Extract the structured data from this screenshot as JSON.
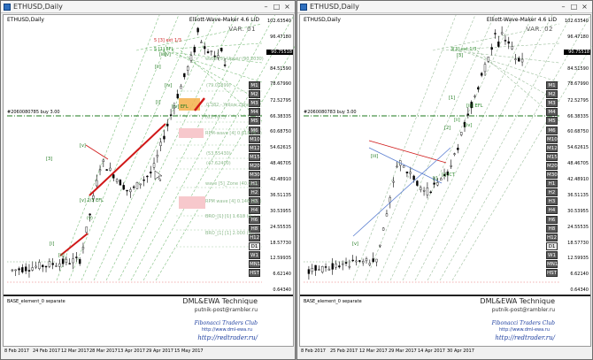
{
  "windows": [
    {
      "id": "w1",
      "title": "ETHUSD,Daily",
      "symbol": "ETHUSD,Daily",
      "indicator": "Elliott-Wave-Maker 4.6 LID",
      "variant": "VAR. 01",
      "prices": [
        "102.63540",
        "96.47180",
        "90.75518",
        "84.51590",
        "78.67990",
        "72.52795",
        "66.38335",
        "60.68750",
        "54.62615",
        "48.46705",
        "42.48910",
        "36.51135",
        "30.53955",
        "24.55535",
        "18.57730",
        "12.59935",
        "6.62140",
        "0.64340"
      ],
      "current_price": "90.75518",
      "timeframes": [
        "M1",
        "M2",
        "M3",
        "M4",
        "M5",
        "M6",
        "M10",
        "M12",
        "M15",
        "M20",
        "M30",
        "H1",
        "H2",
        "H3",
        "H4",
        "H6",
        "H8",
        "H12",
        "D1",
        "W1",
        "MN1",
        "HST"
      ],
      "active_tf": "D1",
      "level_labels": [
        "5 [3] ext 1/3",
        "5 [1] EFL",
        "wave [5]_Upper (90.2030)",
        "(79.01899)",
        "0.382 - Yellow Zone",
        "(63.76...)",
        "RPM-wave [4] 0.618 (5...)",
        "(53.55430)",
        "(47.62400)",
        "wave [5]_Zone (40.1...)",
        "RPM wave [4] 0.146 (3...)",
        "BRO_[1] [1] 1.618 (3...",
        "BRO_[1] [1] 2.000 (1..."
      ],
      "wave_labels": [
        "[iv]",
        "[iii]",
        "[ii]",
        "[i]",
        "[iv] EFL",
        "[v]",
        "(v)",
        "[v] 2/3 EFL",
        "[3]",
        "[i]",
        "[v]",
        "[ii]"
      ],
      "entry_text": "#2060080785 buy 3.00",
      "base_text": "BASE_element_0 separate",
      "dml": "DML&EWA Technique",
      "mail": "putnik-post@rambler.ru",
      "club": "Fibonacci Traders Club",
      "url1": "http://www.dml-ewa.ru",
      "url2": "http://redtrader.ru/",
      "dates": [
        "8 Feb 2017",
        "24 Feb 2017",
        "12 Mar 2017",
        "28 Mar 2017",
        "13 Apr 2017",
        "29 Apr 2017",
        "15 May 2017"
      ]
    },
    {
      "id": "w2",
      "title": "ETHUSD,Daily",
      "symbol": "ETHUSD,Daily",
      "indicator": "Elliott-Wave-Maker 4.6 LID",
      "variant": "VAR. 02",
      "prices": [
        "102.63540",
        "96.47180",
        "90.75518",
        "84.51590",
        "78.67990",
        "72.52795",
        "66.38335",
        "60.68750",
        "54.62615",
        "48.46705",
        "42.48910",
        "36.51135",
        "30.53955",
        "24.55535",
        "18.57730",
        "12.59935",
        "6.62140",
        "0.64340"
      ],
      "current_price": "90.75518",
      "timeframes": [
        "M1",
        "M2",
        "M3",
        "M4",
        "M5",
        "M6",
        "M10",
        "M12",
        "M15",
        "M20",
        "M30",
        "H1",
        "H2",
        "H3",
        "H4",
        "H6",
        "H8",
        "H12",
        "D1",
        "W1",
        "MN1",
        "HST"
      ],
      "active_tf": "D1",
      "level_labels": [
        "3[3] ext 1/3",
        "[iii] EFL",
        "[ii]",
        "[iv]",
        "[i] ICT"
      ],
      "wave_labels": [
        "[3]",
        "[1]",
        "[2]",
        "[v]",
        "[iii]",
        "[i]"
      ],
      "entry_text": "#2060080783 buy 3.00",
      "base_text": "BASE_element_0 separate",
      "dml": "DML&EWA Technique",
      "mail": "putnik-post@rambler.ru",
      "club": "Fibonacci Traders Club",
      "url1": "http://www.dml-ewa.ru",
      "url2": "http://redtrader.ru/",
      "dates": [
        "8 Feb 2017",
        "25 Feb 2017",
        "12 Mar 2017",
        "29 Mar 2017",
        "14 Apr 2017",
        "30 Apr 2017"
      ]
    }
  ],
  "colors": {
    "bull": "#2a8a2a",
    "bear": "#000000",
    "trend_red": "#d01818",
    "fib_green": "#7fbf7f",
    "entry_line": "#1e7a1e",
    "zone_orange": "#f5b04a",
    "zone_pink": "#f7c8cc",
    "fan_blue": "#5b7fd1"
  }
}
